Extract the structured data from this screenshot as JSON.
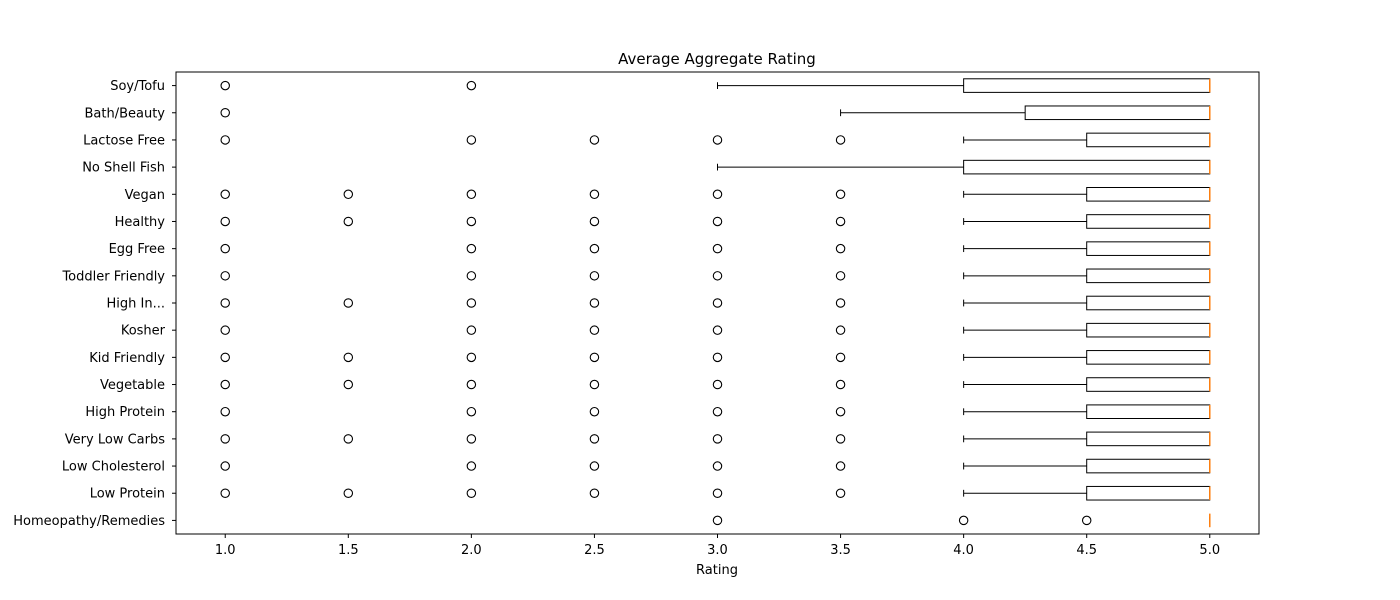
{
  "chart_data": {
    "type": "boxplot",
    "orientation": "horizontal",
    "title": "Average Aggregate Rating",
    "xlabel": "Rating",
    "ylabel": "",
    "xlim": [
      0.8,
      5.2
    ],
    "xticks": [
      "1.0",
      "1.5",
      "2.0",
      "2.5",
      "3.0",
      "3.5",
      "4.0",
      "4.5",
      "5.0"
    ],
    "grid": false,
    "colors": {
      "box": "#000000",
      "median": "#ff7f0e",
      "flier": "#000000"
    },
    "categories": [
      "Homeopathy/Remedies",
      "Low Protein",
      "Low Cholesterol",
      "Very Low Carbs",
      "High Protein",
      "Vegetable",
      "Kid Friendly",
      "Kosher",
      "High In...",
      "Toddler Friendly",
      "Egg Free",
      "Healthy",
      "Vegan",
      "No Shell Fish",
      "Lactose Free",
      "Bath/Beauty",
      "Soy/Tofu"
    ],
    "boxes": [
      {
        "whislo": 5.0,
        "q1": 5.0,
        "med": 5.0,
        "q3": 5.0,
        "whishi": 5.0,
        "fliers": [
          3.0,
          4.0,
          4.5
        ]
      },
      {
        "whislo": 4.0,
        "q1": 4.5,
        "med": 5.0,
        "q3": 5.0,
        "whishi": 5.0,
        "fliers": [
          1.0,
          1.5,
          2.0,
          2.5,
          3.0,
          3.5
        ]
      },
      {
        "whislo": 4.0,
        "q1": 4.5,
        "med": 5.0,
        "q3": 5.0,
        "whishi": 5.0,
        "fliers": [
          1.0,
          2.0,
          2.5,
          3.0,
          3.5
        ]
      },
      {
        "whislo": 4.0,
        "q1": 4.5,
        "med": 5.0,
        "q3": 5.0,
        "whishi": 5.0,
        "fliers": [
          1.0,
          1.5,
          2.0,
          2.5,
          3.0,
          3.5
        ]
      },
      {
        "whislo": 4.0,
        "q1": 4.5,
        "med": 5.0,
        "q3": 5.0,
        "whishi": 5.0,
        "fliers": [
          1.0,
          2.0,
          2.5,
          3.0,
          3.5
        ]
      },
      {
        "whislo": 4.0,
        "q1": 4.5,
        "med": 5.0,
        "q3": 5.0,
        "whishi": 5.0,
        "fliers": [
          1.0,
          1.5,
          2.0,
          2.5,
          3.0,
          3.5
        ]
      },
      {
        "whislo": 4.0,
        "q1": 4.5,
        "med": 5.0,
        "q3": 5.0,
        "whishi": 5.0,
        "fliers": [
          1.0,
          1.5,
          2.0,
          2.5,
          3.0,
          3.5
        ]
      },
      {
        "whislo": 4.0,
        "q1": 4.5,
        "med": 5.0,
        "q3": 5.0,
        "whishi": 5.0,
        "fliers": [
          1.0,
          2.0,
          2.5,
          3.0,
          3.5
        ]
      },
      {
        "whislo": 4.0,
        "q1": 4.5,
        "med": 5.0,
        "q3": 5.0,
        "whishi": 5.0,
        "fliers": [
          1.0,
          1.5,
          2.0,
          2.5,
          3.0,
          3.5
        ]
      },
      {
        "whislo": 4.0,
        "q1": 4.5,
        "med": 5.0,
        "q3": 5.0,
        "whishi": 5.0,
        "fliers": [
          1.0,
          2.0,
          2.5,
          3.0,
          3.5
        ]
      },
      {
        "whislo": 4.0,
        "q1": 4.5,
        "med": 5.0,
        "q3": 5.0,
        "whishi": 5.0,
        "fliers": [
          1.0,
          2.0,
          2.5,
          3.0,
          3.5
        ]
      },
      {
        "whislo": 4.0,
        "q1": 4.5,
        "med": 5.0,
        "q3": 5.0,
        "whishi": 5.0,
        "fliers": [
          1.0,
          1.5,
          2.0,
          2.5,
          3.0,
          3.5
        ]
      },
      {
        "whislo": 4.0,
        "q1": 4.5,
        "med": 5.0,
        "q3": 5.0,
        "whishi": 5.0,
        "fliers": [
          1.0,
          1.5,
          2.0,
          2.5,
          3.0,
          3.5
        ]
      },
      {
        "whislo": 3.0,
        "q1": 4.0,
        "med": 5.0,
        "q3": 5.0,
        "whishi": 5.0,
        "fliers": []
      },
      {
        "whislo": 4.0,
        "q1": 4.5,
        "med": 5.0,
        "q3": 5.0,
        "whishi": 5.0,
        "fliers": [
          1.0,
          2.0,
          2.5,
          3.0,
          3.5
        ]
      },
      {
        "whislo": 3.5,
        "q1": 4.25,
        "med": 5.0,
        "q3": 5.0,
        "whishi": 5.0,
        "fliers": [
          1.0
        ]
      },
      {
        "whislo": 3.0,
        "q1": 4.0,
        "med": 5.0,
        "q3": 5.0,
        "whishi": 5.0,
        "fliers": [
          1.0,
          2.0
        ]
      }
    ]
  }
}
